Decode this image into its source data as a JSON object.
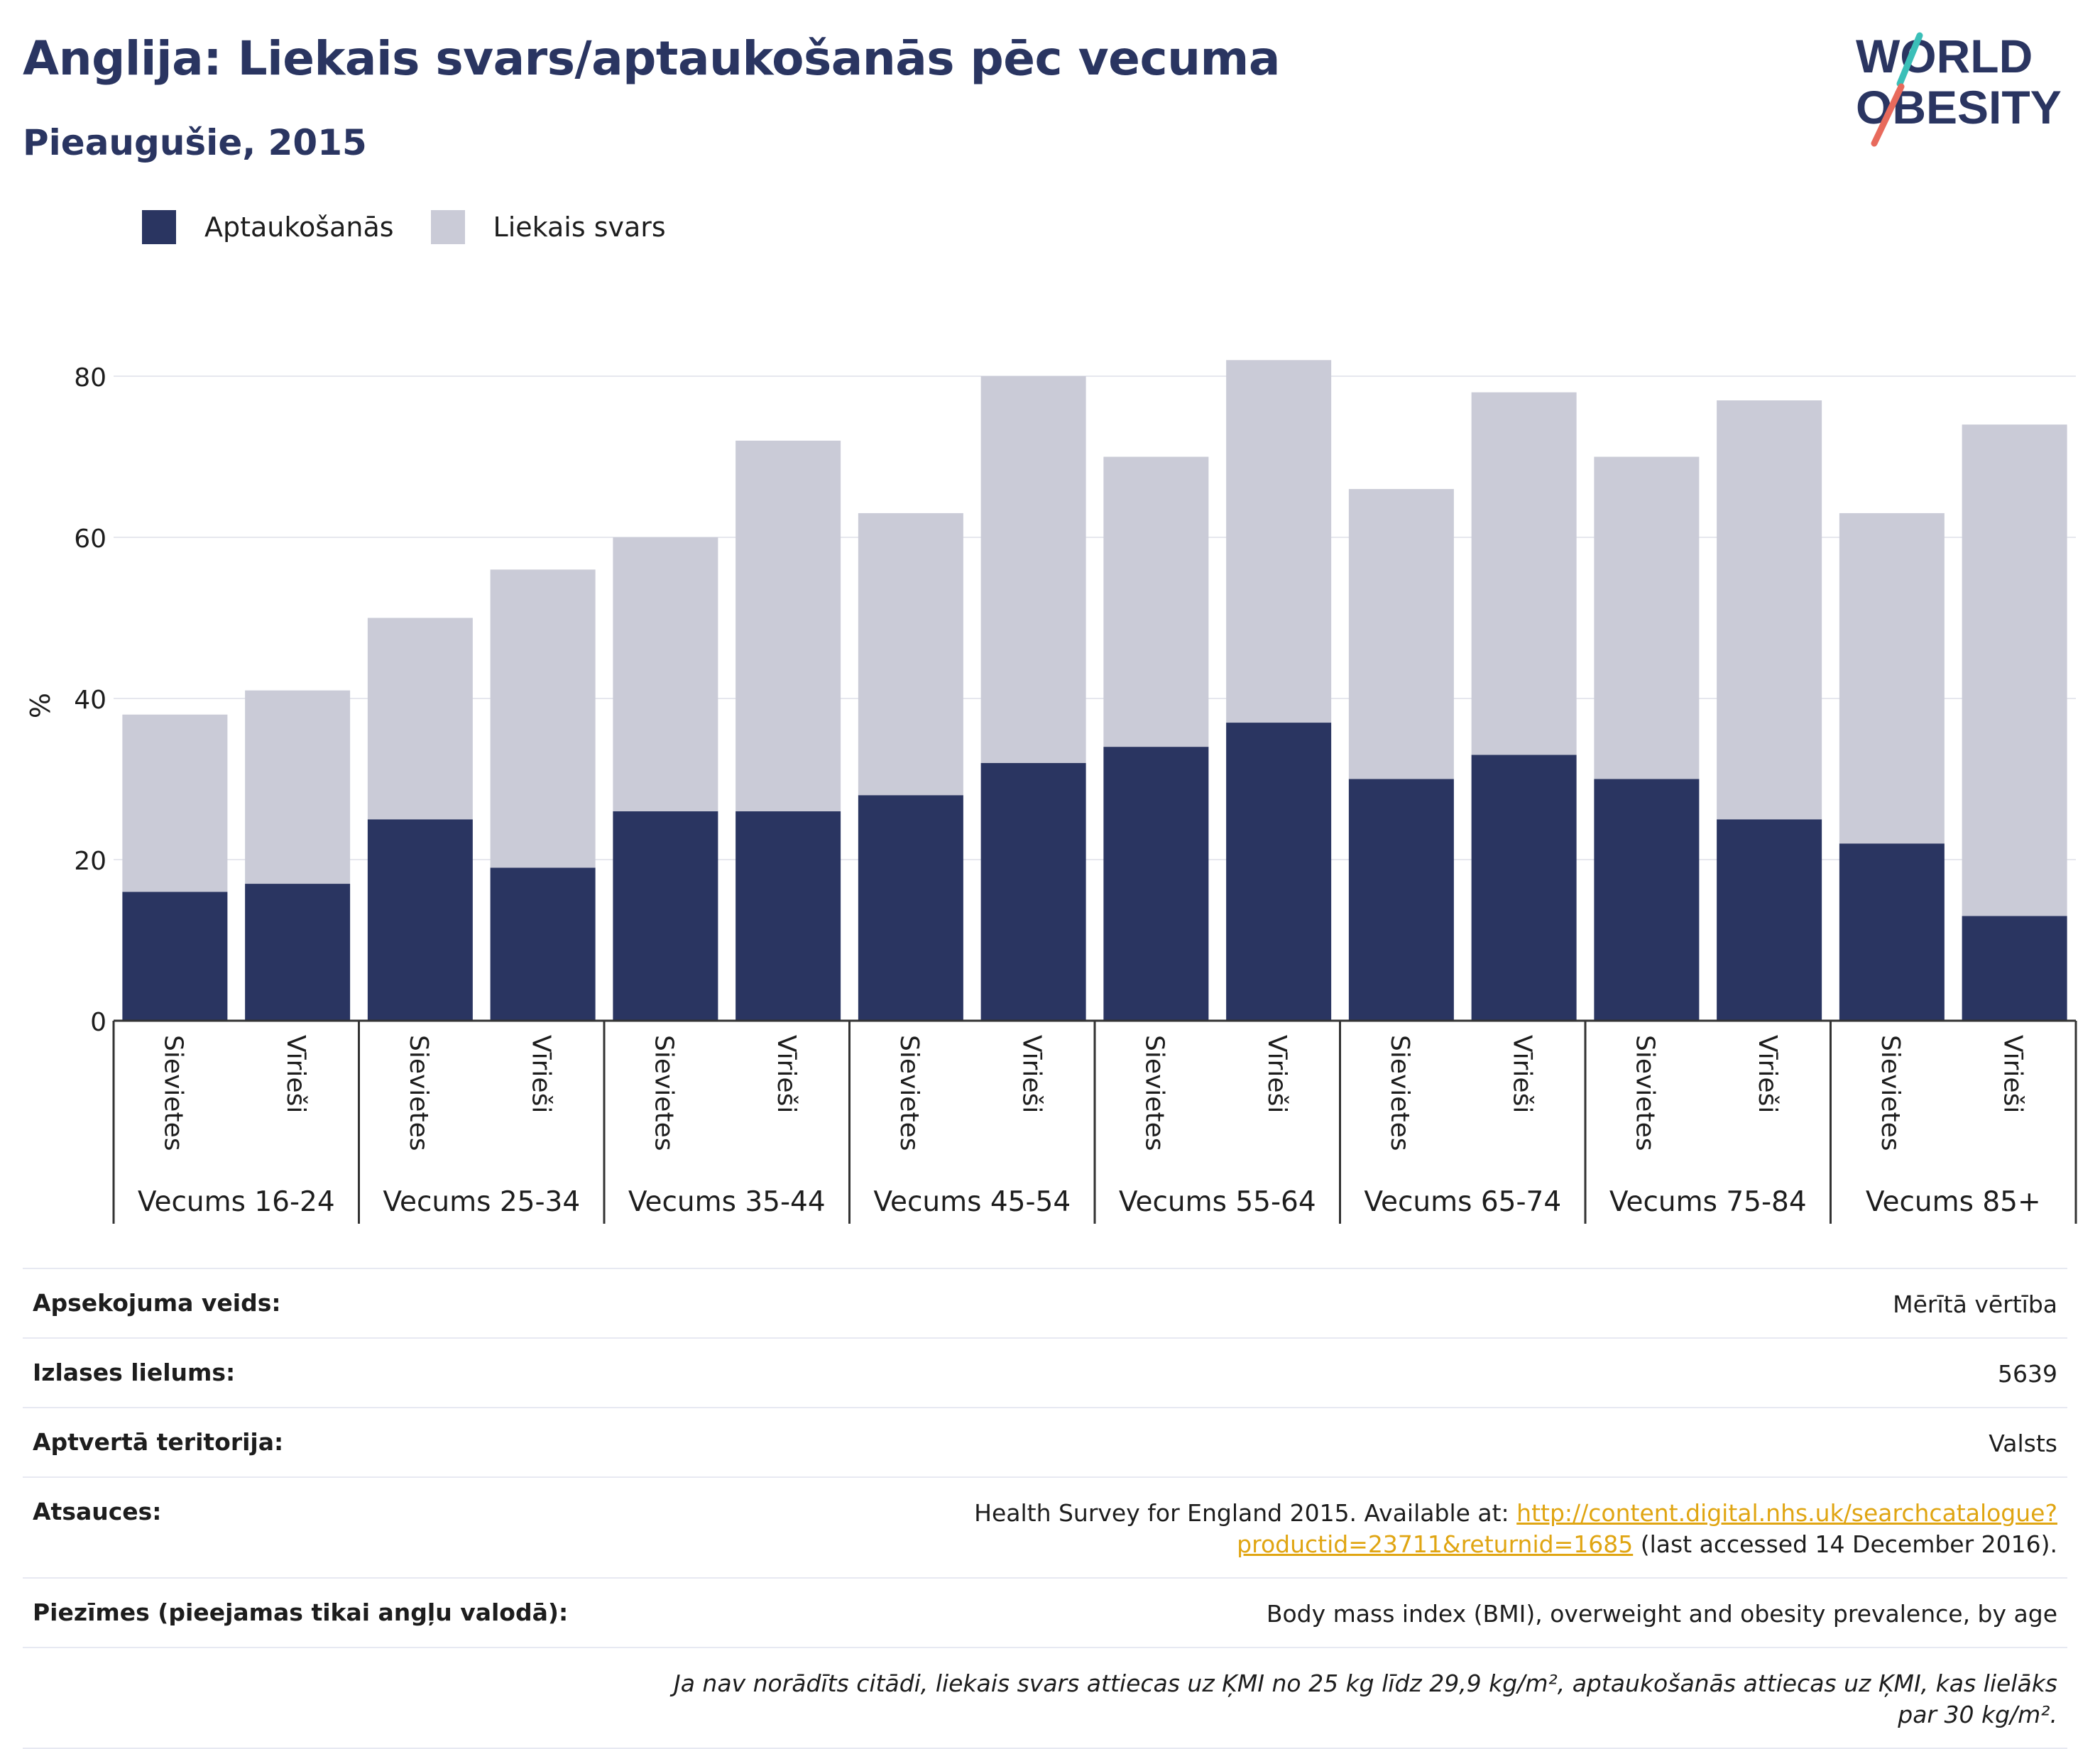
{
  "header": {
    "title": "Anglija: Liekais svars/aptaukošanās pēc vecuma",
    "subtitle": "Pieaugušie, 2015"
  },
  "logo": {
    "line1": "WORLD",
    "line2": "OBESITY"
  },
  "legend": {
    "items": [
      "Aptaukošanās",
      "Liekais svars"
    ]
  },
  "colors": {
    "obesity": "#2a3561",
    "overweight": "#cacbd7",
    "link": "#e0a512",
    "grid": "#e6e7ee"
  },
  "chart_data": {
    "type": "bar",
    "stacked": true,
    "ylabel": "%",
    "ylim": [
      0,
      85
    ],
    "yticks": [
      0,
      20,
      40,
      60,
      80
    ],
    "grid": true,
    "legend_position": "top-left",
    "groups": [
      "Vecums 16-24",
      "Vecums 25-34",
      "Vecums 35-44",
      "Vecums 45-54",
      "Vecums 55-64",
      "Vecums 65-74",
      "Vecums 75-84",
      "Vecums 85+"
    ],
    "subcategories": [
      "Sievietes",
      "Vīrieši"
    ],
    "series": [
      {
        "name": "Aptaukošanās",
        "values": [
          16,
          17,
          25,
          19,
          26,
          26,
          28,
          32,
          34,
          37,
          30,
          33,
          30,
          25,
          22,
          13
        ]
      },
      {
        "name": "Liekais svars",
        "values": [
          22,
          24,
          25,
          37,
          34,
          46,
          35,
          48,
          36,
          45,
          36,
          45,
          40,
          52,
          41,
          61
        ]
      }
    ]
  },
  "info": [
    {
      "label": "Apsekojuma veids:",
      "value": "Mērītā vērtība"
    },
    {
      "label": "Izlases lielums:",
      "value": "5639"
    },
    {
      "label": "Aptvertā teritorija:",
      "value": "Valsts"
    },
    {
      "label": "Atsauces:",
      "value_pre": "Health Survey for England 2015. Available at: ",
      "link": "http://content.digital.nhs.uk/searchcatalogue?productid=23711&returnid=1685",
      "value_post": " (last accessed 14 December 2016)."
    },
    {
      "label": "Piezīmes (pieejamas tikai angļu valodā):",
      "value": "Body mass index (BMI), overweight and obesity prevalence, by age"
    },
    {
      "label": "",
      "value": "Ja nav norādīts citādi, liekais svars attiecas uz ĶMI no 25 kg līdz 29,9 kg/m², aptaukošanās attiecas uz ĶMI, kas lielāks par 30 kg/m²."
    }
  ]
}
